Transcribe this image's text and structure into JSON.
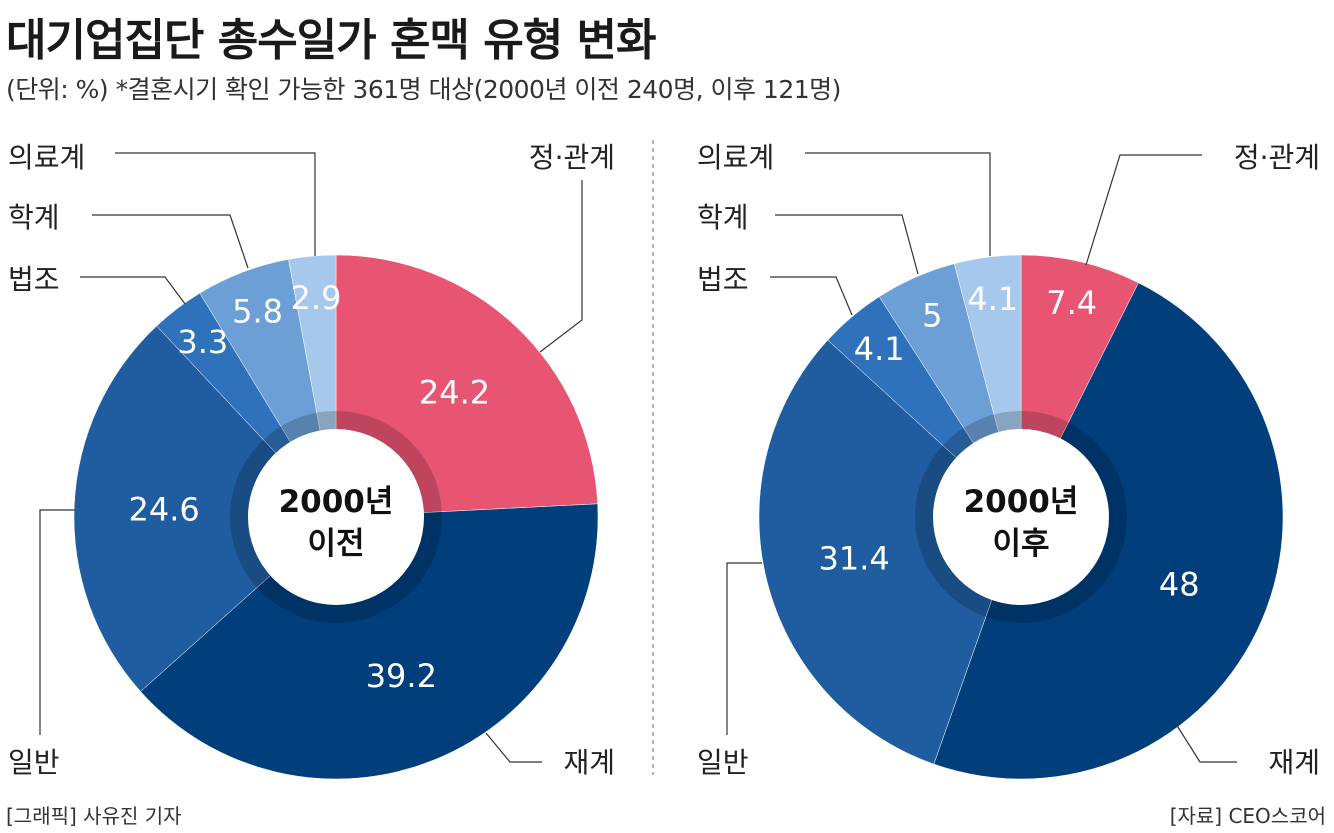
{
  "title": "대기업집단 총수일가 혼맥 유형 변화",
  "subtitle": "(단위: %) *결혼시기 확인 가능한 361명 대상(2000년 이전 240명, 이후 121명)",
  "footer_left": "[그래픽] 사유진 기자",
  "footer_right": "[자료] CEO스코어",
  "chart_data": [
    {
      "type": "pie",
      "donut": true,
      "center_label": [
        "2000년",
        "이전"
      ],
      "categories": [
        "정·관계",
        "재계",
        "일반",
        "법조",
        "학계",
        "의료계"
      ],
      "values": [
        24.2,
        39.2,
        24.6,
        3.3,
        5.8,
        2.9
      ],
      "value_labels": [
        "24.2",
        "39.2",
        "24.6",
        "3.3",
        "5.8",
        "2.9"
      ]
    },
    {
      "type": "pie",
      "donut": true,
      "center_label": [
        "2000년",
        "이후"
      ],
      "categories": [
        "정·관계",
        "재계",
        "일반",
        "법조",
        "학계",
        "의료계"
      ],
      "values": [
        7.4,
        48,
        31.4,
        4.1,
        5,
        4.1
      ],
      "value_labels": [
        "7.4",
        "48",
        "31.4",
        "4.1",
        "5",
        "4.1"
      ]
    }
  ],
  "colors": {
    "정·관계": "#e85572",
    "재계": "#003f7c",
    "일반": "#1f5da0",
    "법조": "#2f72bb",
    "학계": "#6b9fd6",
    "의료계": "#a6c8ec"
  }
}
